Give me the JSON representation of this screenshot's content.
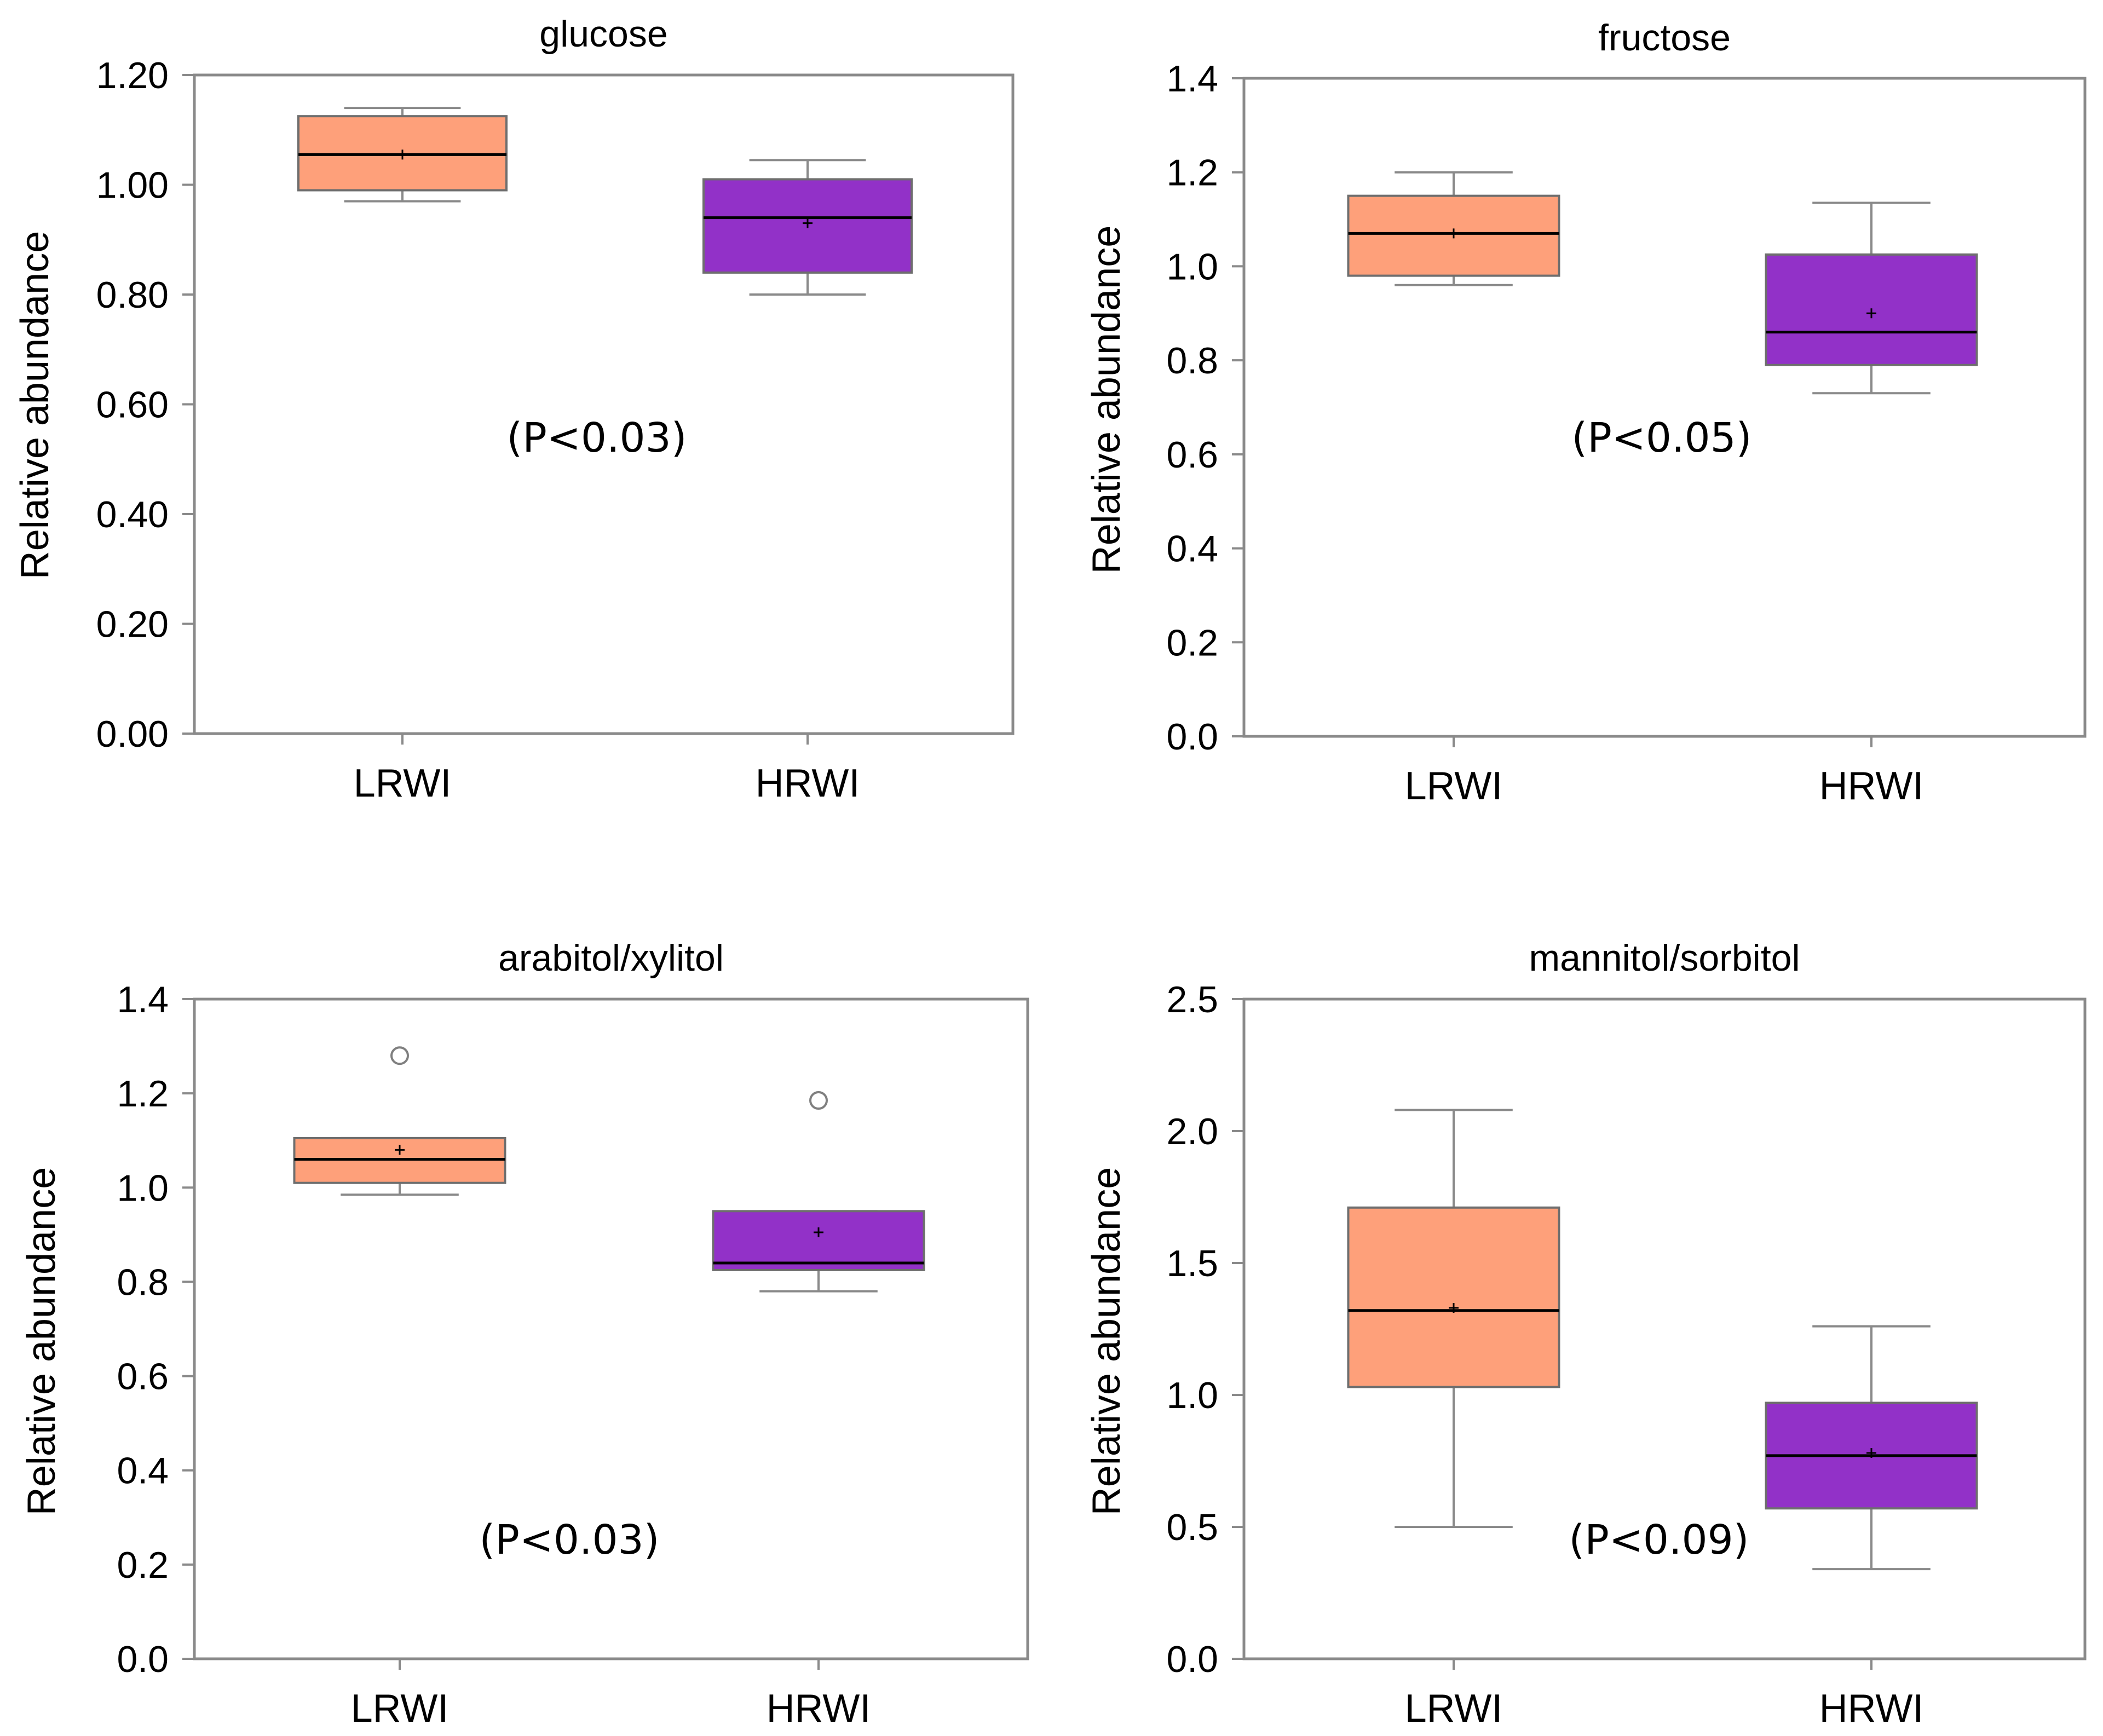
{
  "colors": {
    "LRWI": "#fea07a",
    "HRWI": "#9231c8",
    "frame": "#8a8a8a",
    "whisker": "#8a8a8a",
    "median": "#000000",
    "outlier": "#7f7f7f"
  },
  "chart_data": [
    {
      "type": "box",
      "title": "glucose",
      "ylabel": "Relative abundance",
      "ylim": [
        0,
        1.2
      ],
      "yticks": [
        "0.00",
        "0.20",
        "0.40",
        "0.60",
        "0.80",
        "1.00",
        "1.20"
      ],
      "categories": [
        "LRWI",
        "HRWI"
      ],
      "annotation": "(P<0.03)",
      "boxes": [
        {
          "name": "LRWI",
          "whisker_low": 0.97,
          "q1": 0.99,
          "median": 1.055,
          "mean": 1.055,
          "q3": 1.125,
          "whisker_high": 1.14,
          "outliers": []
        },
        {
          "name": "HRWI",
          "whisker_low": 0.8,
          "q1": 0.84,
          "median": 0.94,
          "mean": 0.93,
          "q3": 1.01,
          "whisker_high": 1.045,
          "outliers": []
        }
      ]
    },
    {
      "type": "box",
      "title": "fructose",
      "ylabel": "Relative abundance",
      "ylim": [
        0,
        1.4
      ],
      "yticks": [
        "0.0",
        "0.2",
        "0.4",
        "0.6",
        "0.8",
        "1.0",
        "1.2",
        "1.4"
      ],
      "categories": [
        "LRWI",
        "HRWI"
      ],
      "annotation": "(P<0.05)",
      "boxes": [
        {
          "name": "LRWI",
          "whisker_low": 0.96,
          "q1": 0.98,
          "median": 1.07,
          "mean": 1.07,
          "q3": 1.15,
          "whisker_high": 1.2,
          "outliers": []
        },
        {
          "name": "HRWI",
          "whisker_low": 0.73,
          "q1": 0.79,
          "median": 0.86,
          "mean": 0.9,
          "q3": 1.025,
          "whisker_high": 1.135,
          "outliers": []
        }
      ]
    },
    {
      "type": "box",
      "title": "arabitol/xylitol",
      "ylabel": "Relative abundance",
      "ylim": [
        0,
        1.4
      ],
      "yticks": [
        "0.0",
        "0.2",
        "0.4",
        "0.6",
        "0.8",
        "1.0",
        "1.2",
        "1.4"
      ],
      "categories": [
        "LRWI",
        "HRWI"
      ],
      "annotation": "(P<0.03)",
      "boxes": [
        {
          "name": "LRWI",
          "whisker_low": 0.985,
          "q1": 1.01,
          "median": 1.06,
          "mean": 1.08,
          "q3": 1.105,
          "whisker_high": 1.105,
          "outliers": [
            1.28
          ]
        },
        {
          "name": "HRWI",
          "whisker_low": 0.78,
          "q1": 0.825,
          "median": 0.84,
          "mean": 0.905,
          "q3": 0.95,
          "whisker_high": 0.95,
          "outliers": [
            1.185
          ]
        }
      ]
    },
    {
      "type": "box",
      "title": "mannitol/sorbitol",
      "ylabel": "Relative abundance",
      "ylim": [
        0,
        2.5
      ],
      "yticks": [
        "0.0",
        "0.5",
        "1.0",
        "1.5",
        "2.0",
        "2.5"
      ],
      "categories": [
        "LRWI",
        "HRWI"
      ],
      "annotation": "(P<0.09)",
      "boxes": [
        {
          "name": "LRWI",
          "whisker_low": 0.5,
          "q1": 1.03,
          "median": 1.32,
          "mean": 1.33,
          "q3": 1.71,
          "whisker_high": 2.08,
          "outliers": []
        },
        {
          "name": "HRWI",
          "whisker_low": 0.34,
          "q1": 0.57,
          "median": 0.77,
          "mean": 0.78,
          "q3": 0.97,
          "whisker_high": 1.26,
          "outliers": []
        }
      ]
    }
  ]
}
